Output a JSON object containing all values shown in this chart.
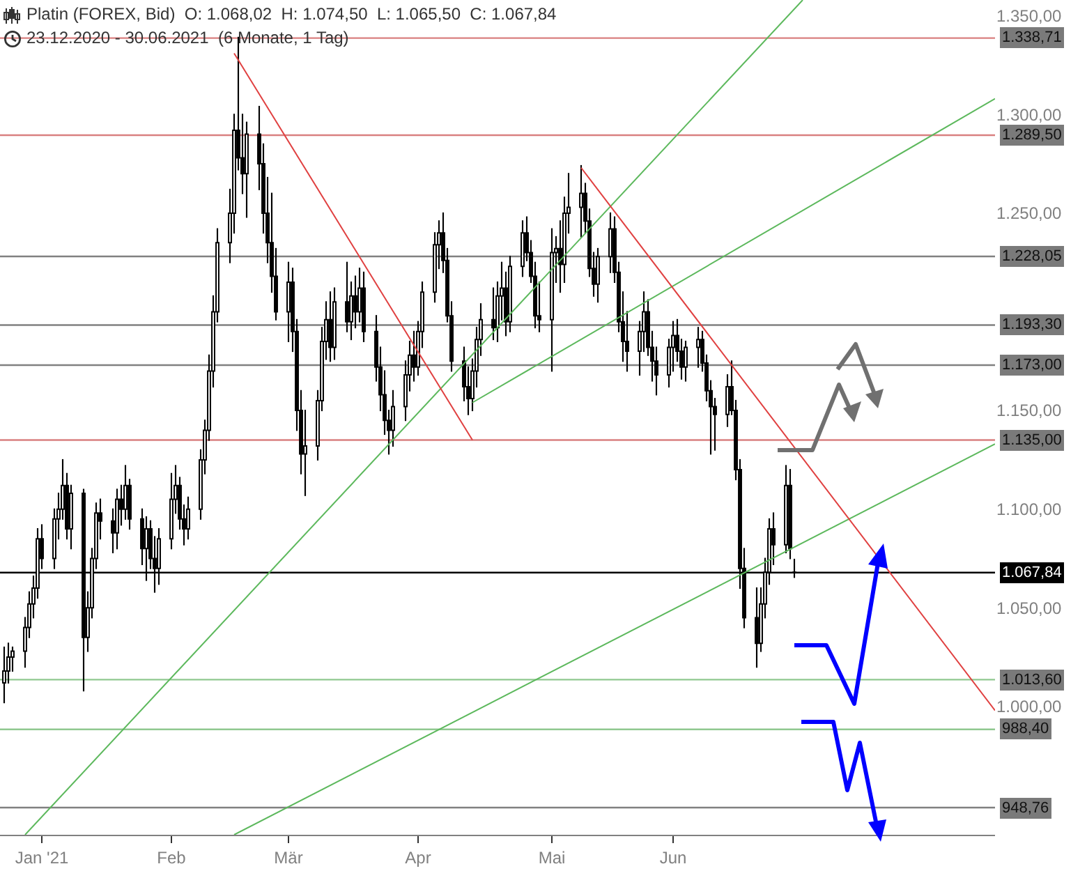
{
  "chart_data": {
    "type": "candlestick",
    "title": "Platin (FOREX, Bid)  O: 1.068,02  H: 1.074,50  L: 1.065,50  C: 1.067,84",
    "subtitle": "23.12.2020 - 30.06.2021  (6 Monate, 1 Tag)",
    "x": [
      "2020-12-23",
      "2020-12-24",
      "2020-12-25",
      "2020-12-28",
      "2020-12-29",
      "2020-12-30",
      "2020-12-31",
      "2021-01-01",
      "2021-01-04",
      "2021-01-05",
      "2021-01-06",
      "2021-01-07",
      "2021-01-08",
      "2021-01-11",
      "2021-01-12",
      "2021-01-13",
      "2021-01-14",
      "2021-01-15",
      "2021-01-18",
      "2021-01-19",
      "2021-01-20",
      "2021-01-21",
      "2021-01-22",
      "2021-01-25",
      "2021-01-26",
      "2021-01-27",
      "2021-01-28",
      "2021-01-29",
      "2021-02-01",
      "2021-02-02",
      "2021-02-03",
      "2021-02-04",
      "2021-02-05",
      "2021-02-08",
      "2021-02-09",
      "2021-02-10",
      "2021-02-11",
      "2021-02-12",
      "2021-02-15",
      "2021-02-16",
      "2021-02-17",
      "2021-02-18",
      "2021-02-19",
      "2021-02-22",
      "2021-02-23",
      "2021-02-24",
      "2021-02-25",
      "2021-02-26",
      "2021-03-01",
      "2021-03-02",
      "2021-03-03",
      "2021-03-04",
      "2021-03-05",
      "2021-03-08",
      "2021-03-09",
      "2021-03-10",
      "2021-03-11",
      "2021-03-12",
      "2021-03-15",
      "2021-03-16",
      "2021-03-17",
      "2021-03-18",
      "2021-03-19",
      "2021-03-22",
      "2021-03-23",
      "2021-03-24",
      "2021-03-25",
      "2021-03-26",
      "2021-03-29",
      "2021-03-30",
      "2021-03-31",
      "2021-04-01",
      "2021-04-02",
      "2021-04-05",
      "2021-04-06",
      "2021-04-07",
      "2021-04-08",
      "2021-04-09",
      "2021-04-12",
      "2021-04-13",
      "2021-04-14",
      "2021-04-15",
      "2021-04-16",
      "2021-04-19",
      "2021-04-20",
      "2021-04-21",
      "2021-04-22",
      "2021-04-23",
      "2021-04-26",
      "2021-04-27",
      "2021-04-28",
      "2021-04-29",
      "2021-04-30",
      "2021-05-03",
      "2021-05-04",
      "2021-05-05",
      "2021-05-06",
      "2021-05-07",
      "2021-05-10",
      "2021-05-11",
      "2021-05-12",
      "2021-05-13",
      "2021-05-14",
      "2021-05-17",
      "2021-05-18",
      "2021-05-19",
      "2021-05-20",
      "2021-05-21",
      "2021-05-24",
      "2021-05-25",
      "2021-05-26",
      "2021-05-27",
      "2021-05-28",
      "2021-05-31",
      "2021-06-01",
      "2021-06-02",
      "2021-06-03",
      "2021-06-04",
      "2021-06-07",
      "2021-06-08",
      "2021-06-09",
      "2021-06-10",
      "2021-06-11",
      "2021-06-14",
      "2021-06-15",
      "2021-06-16",
      "2021-06-17",
      "2021-06-18",
      "2021-06-21",
      "2021-06-22",
      "2021-06-23",
      "2021-06-24",
      "2021-06-25",
      "2021-06-28",
      "2021-06-29",
      "2021-06-30"
    ],
    "ohlc": [
      [
        1012,
        1030,
        1002,
        1018
      ],
      [
        1018,
        1032,
        1012,
        1025
      ],
      [
        1025,
        1030,
        1018,
        1028
      ],
      [
        1028,
        1045,
        1020,
        1040
      ],
      [
        1040,
        1058,
        1035,
        1052
      ],
      [
        1052,
        1066,
        1045,
        1060
      ],
      [
        1060,
        1090,
        1055,
        1085
      ],
      [
        1085,
        1092,
        1070,
        1075
      ],
      [
        1075,
        1100,
        1070,
        1095
      ],
      [
        1095,
        1108,
        1085,
        1100
      ],
      [
        1100,
        1125,
        1095,
        1112
      ],
      [
        1112,
        1118,
        1085,
        1090
      ],
      [
        1090,
        1112,
        1080,
        1108
      ],
      [
        1108,
        1110,
        1008,
        1035
      ],
      [
        1035,
        1058,
        1028,
        1050
      ],
      [
        1050,
        1080,
        1045,
        1075
      ],
      [
        1075,
        1103,
        1070,
        1098
      ],
      [
        1098,
        1105,
        1085,
        1094
      ],
      [
        1094,
        1100,
        1078,
        1088
      ],
      [
        1088,
        1110,
        1080,
        1105
      ],
      [
        1105,
        1112,
        1092,
        1100
      ],
      [
        1100,
        1122,
        1095,
        1112
      ],
      [
        1112,
        1115,
        1090,
        1095
      ],
      [
        1095,
        1100,
        1072,
        1080
      ],
      [
        1080,
        1096,
        1064,
        1090
      ],
      [
        1090,
        1094,
        1070,
        1075
      ],
      [
        1075,
        1086,
        1058,
        1070
      ],
      [
        1070,
        1090,
        1062,
        1085
      ],
      [
        1085,
        1118,
        1080,
        1105
      ],
      [
        1105,
        1122,
        1098,
        1112
      ],
      [
        1112,
        1116,
        1090,
        1095
      ],
      [
        1095,
        1102,
        1082,
        1090
      ],
      [
        1090,
        1106,
        1085,
        1100
      ],
      [
        1100,
        1130,
        1095,
        1125
      ],
      [
        1125,
        1145,
        1118,
        1140
      ],
      [
        1140,
        1178,
        1135,
        1170
      ],
      [
        1170,
        1208,
        1162,
        1200
      ],
      [
        1200,
        1242,
        1195,
        1235
      ],
      [
        1235,
        1262,
        1225,
        1250
      ],
      [
        1250,
        1300,
        1240,
        1292
      ],
      [
        1292,
        1339,
        1272,
        1278
      ],
      [
        1278,
        1300,
        1260,
        1270
      ],
      [
        1270,
        1296,
        1248,
        1290
      ],
      [
        1290,
        1304,
        1262,
        1275
      ],
      [
        1275,
        1285,
        1240,
        1250
      ],
      [
        1250,
        1268,
        1225,
        1235
      ],
      [
        1235,
        1260,
        1210,
        1218
      ],
      [
        1218,
        1232,
        1196,
        1200
      ],
      [
        1200,
        1225,
        1185,
        1215
      ],
      [
        1215,
        1222,
        1180,
        1190
      ],
      [
        1190,
        1196,
        1140,
        1150
      ],
      [
        1150,
        1160,
        1118,
        1128
      ],
      [
        1128,
        1150,
        1107,
        1132
      ],
      [
        1132,
        1160,
        1125,
        1155
      ],
      [
        1155,
        1192,
        1150,
        1185
      ],
      [
        1185,
        1205,
        1176,
        1196
      ],
      [
        1196,
        1210,
        1175,
        1182
      ],
      [
        1182,
        1212,
        1176,
        1205
      ],
      [
        1205,
        1225,
        1190,
        1195
      ],
      [
        1195,
        1215,
        1186,
        1208
      ],
      [
        1208,
        1218,
        1192,
        1200
      ],
      [
        1200,
        1222,
        1195,
        1212
      ],
      [
        1212,
        1220,
        1185,
        1190
      ],
      [
        1190,
        1198,
        1165,
        1172
      ],
      [
        1172,
        1182,
        1150,
        1158
      ],
      [
        1158,
        1170,
        1138,
        1145
      ],
      [
        1145,
        1150,
        1128,
        1140
      ],
      [
        1140,
        1160,
        1132,
        1152
      ],
      [
        1152,
        1175,
        1145,
        1168
      ],
      [
        1168,
        1185,
        1160,
        1178
      ],
      [
        1178,
        1190,
        1165,
        1172
      ],
      [
        1172,
        1195,
        1168,
        1190
      ],
      [
        1190,
        1215,
        1182,
        1210
      ],
      [
        1210,
        1240,
        1205,
        1234
      ],
      [
        1234,
        1246,
        1222,
        1240
      ],
      [
        1240,
        1250,
        1220,
        1226
      ],
      [
        1226,
        1232,
        1195,
        1198
      ],
      [
        1198,
        1205,
        1170,
        1175
      ],
      [
        1175,
        1182,
        1155,
        1162
      ],
      [
        1162,
        1172,
        1148,
        1156
      ],
      [
        1156,
        1176,
        1150,
        1170
      ],
      [
        1170,
        1192,
        1162,
        1186
      ],
      [
        1186,
        1204,
        1178,
        1196
      ],
      [
        1196,
        1212,
        1186,
        1192
      ],
      [
        1192,
        1215,
        1185,
        1208
      ],
      [
        1208,
        1225,
        1196,
        1212
      ],
      [
        1212,
        1220,
        1188,
        1195
      ],
      [
        1195,
        1228,
        1190,
        1223
      ],
      [
        1223,
        1246,
        1218,
        1240
      ],
      [
        1240,
        1248,
        1226,
        1230
      ],
      [
        1230,
        1236,
        1215,
        1218
      ],
      [
        1218,
        1225,
        1192,
        1198
      ],
      [
        1198,
        1215,
        1190,
        1196
      ],
      [
        1196,
        1242,
        1170,
        1230
      ],
      [
        1230,
        1238,
        1215,
        1232
      ],
      [
        1232,
        1246,
        1210,
        1224
      ],
      [
        1224,
        1258,
        1215,
        1250
      ],
      [
        1250,
        1270,
        1240,
        1253
      ],
      [
        1253,
        1274,
        1238,
        1260
      ],
      [
        1260,
        1265,
        1240,
        1246
      ],
      [
        1246,
        1252,
        1218,
        1222
      ],
      [
        1222,
        1230,
        1208,
        1214
      ],
      [
        1214,
        1232,
        1205,
        1228
      ],
      [
        1228,
        1250,
        1220,
        1242
      ],
      [
        1242,
        1248,
        1215,
        1220
      ],
      [
        1220,
        1225,
        1190,
        1195
      ],
      [
        1195,
        1210,
        1175,
        1185
      ],
      [
        1185,
        1200,
        1170,
        1180
      ],
      [
        1180,
        1195,
        1168,
        1190
      ],
      [
        1190,
        1210,
        1180,
        1200
      ],
      [
        1200,
        1206,
        1178,
        1182
      ],
      [
        1182,
        1190,
        1165,
        1175
      ],
      [
        1175,
        1182,
        1158,
        1168
      ],
      [
        1168,
        1186,
        1162,
        1182
      ],
      [
        1182,
        1195,
        1170,
        1188
      ],
      [
        1188,
        1196,
        1175,
        1180
      ],
      [
        1180,
        1186,
        1166,
        1172
      ],
      [
        1172,
        1185,
        1165,
        1182
      ],
      [
        1182,
        1192,
        1172,
        1186
      ],
      [
        1186,
        1190,
        1170,
        1174
      ],
      [
        1174,
        1178,
        1155,
        1160
      ],
      [
        1160,
        1165,
        1128,
        1152
      ],
      [
        1152,
        1156,
        1130,
        1148
      ],
      [
        1148,
        1168,
        1142,
        1162
      ],
      [
        1162,
        1175,
        1148,
        1150
      ],
      [
        1150,
        1155,
        1115,
        1120
      ],
      [
        1120,
        1125,
        1060,
        1070
      ],
      [
        1070,
        1080,
        1040,
        1045
      ],
      [
        1045,
        1060,
        1020,
        1032
      ],
      [
        1032,
        1060,
        1028,
        1052
      ],
      [
        1052,
        1075,
        1045,
        1068
      ],
      [
        1068,
        1095,
        1062,
        1090
      ],
      [
        1090,
        1098,
        1072,
        1082
      ],
      [
        1082,
        1122,
        1078,
        1112
      ],
      [
        1112,
        1120,
        1075,
        1080
      ],
      [
        1068.02,
        1074.5,
        1065.5,
        1067.84
      ]
    ],
    "series": [
      {
        "type": "line",
        "color": "#5cb85c",
        "x": [
          "2020-12-28",
          "2021-07-02"
        ],
        "values": [
          935,
          1358
        ]
      },
      {
        "type": "line",
        "color": "#5cb85c",
        "x": [
          "2021-04-14",
          "2021-08-17"
        ],
        "values": [
          1154,
          1308
        ]
      },
      {
        "type": "line",
        "color": "#5cb85c",
        "x": [
          "2021-02-16",
          "2021-08-17"
        ],
        "values": [
          935,
          1133
        ]
      },
      {
        "type": "line",
        "color": "#e04040",
        "x": [
          "2021-02-16",
          "2021-04-14"
        ],
        "values": [
          1331,
          1135
        ]
      },
      {
        "type": "line",
        "color": "#e04040",
        "x": [
          "2021-05-10",
          "2021-08-17"
        ],
        "values": [
          1273,
          998
        ]
      }
    ],
    "ref_lines": [
      {
        "axis": "y",
        "value": 1338.71,
        "label": "1.338,71",
        "color": "#d98080"
      },
      {
        "axis": "y",
        "value": 1289.5,
        "label": "1.289,50",
        "color": "#d98080"
      },
      {
        "axis": "y",
        "value": 1228.05,
        "label": "1.228,05",
        "color": "#808080"
      },
      {
        "axis": "y",
        "value": 1193.3,
        "label": "1.193,30",
        "color": "#808080"
      },
      {
        "axis": "y",
        "value": 1173,
        "label": "1.173,00",
        "color": "#808080"
      },
      {
        "axis": "y",
        "value": 1135,
        "label": "1.135,00",
        "color": "#d98080"
      },
      {
        "axis": "y",
        "value": 1067.84,
        "label": "1.067,84",
        "color": "#000000"
      },
      {
        "axis": "y",
        "value": 1013.6,
        "label": "1.013,60",
        "color": "#90c890"
      },
      {
        "axis": "y",
        "value": 988.4,
        "label": "988,40",
        "color": "#90c890"
      },
      {
        "axis": "y",
        "value": 948.76,
        "label": "948,76",
        "color": "#808080"
      }
    ],
    "xlim": [
      "2020-12-22",
      "2021-08-17"
    ],
    "xticks": [
      {
        "value": "2021-01-01",
        "label": "Jan '21"
      },
      {
        "value": "2021-02-01",
        "label": "Feb"
      },
      {
        "value": "2021-03-01",
        "label": "Mär"
      },
      {
        "value": "2021-04-01",
        "label": "Apr"
      },
      {
        "value": "2021-05-03",
        "label": "Mai"
      },
      {
        "value": "2021-06-01",
        "label": "Jun"
      }
    ],
    "ylim": [
      935,
      1358
    ],
    "yticks": [
      {
        "value": 1000,
        "label": "1.000,00"
      },
      {
        "value": 1050,
        "label": "1.050,00"
      },
      {
        "value": 1100,
        "label": "1.100,00"
      },
      {
        "value": 1150,
        "label": "1.150,00"
      },
      {
        "value": 1250,
        "label": "1.250,00"
      },
      {
        "value": 1300,
        "label": "1.300,00"
      },
      {
        "value": 1350,
        "label": "1.350,00"
      }
    ],
    "grid": false
  }
}
